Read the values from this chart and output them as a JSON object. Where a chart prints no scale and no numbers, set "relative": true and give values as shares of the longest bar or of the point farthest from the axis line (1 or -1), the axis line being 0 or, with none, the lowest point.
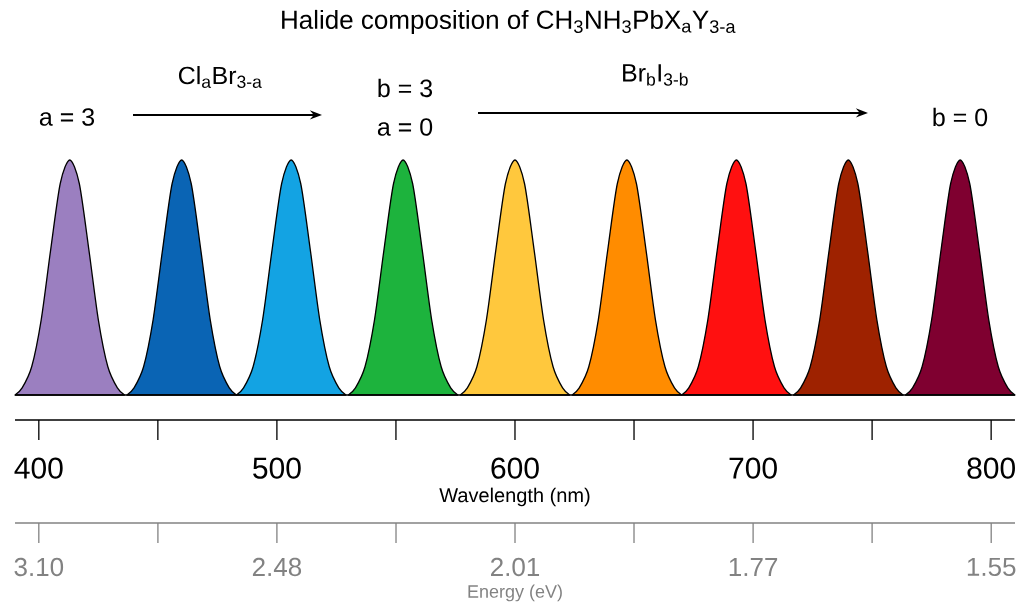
{
  "chart_data": {
    "type": "area",
    "relative": true,
    "title": "Halide composition of CH$_{3}$NH$_{3}$PbX$_{a}$Y$_{3-a}$",
    "annotations": [
      "a = 3",
      "Cl$_{a}$Br$_{3-a}$",
      "b = 3",
      "a = 0",
      "Br$_{b}$I$_{3-b}$",
      "b = 0",
      "3.10",
      "2.48",
      "2.01",
      "1.77",
      "1.55",
      "Energy (eV)"
    ],
    "xlabel": "Wavelength (nm)",
    "xlim": [
      390,
      810
    ],
    "xticks": [
      400,
      500,
      600,
      700,
      800
    ],
    "series": [
      {
        "color": "#9b7fc0",
        "x": [
          390,
          393,
          397,
          401,
          405,
          409,
          413,
          417,
          421,
          425,
          429,
          433,
          436
        ],
        "values": [
          0,
          0.03,
          0.12,
          0.32,
          0.62,
          0.9,
          1,
          0.9,
          0.62,
          0.32,
          0.12,
          0.03,
          0
        ]
      },
      {
        "color": "#0a64b4",
        "x": [
          437,
          440,
          444,
          448,
          452,
          456,
          460,
          464,
          468,
          472,
          476,
          480,
          483
        ],
        "values": [
          0,
          0.03,
          0.12,
          0.32,
          0.62,
          0.9,
          1,
          0.9,
          0.62,
          0.32,
          0.12,
          0.03,
          0
        ]
      },
      {
        "color": "#13a3e3",
        "x": [
          483,
          486,
          490,
          494,
          498,
          502,
          506,
          510,
          514,
          518,
          522,
          526,
          529
        ],
        "values": [
          0,
          0.03,
          0.12,
          0.32,
          0.62,
          0.9,
          1,
          0.9,
          0.62,
          0.32,
          0.12,
          0.03,
          0
        ]
      },
      {
        "color": "#1db33d",
        "x": [
          530,
          533,
          537,
          541,
          545,
          549,
          553,
          557,
          561,
          565,
          569,
          573,
          576
        ],
        "values": [
          0,
          0.03,
          0.12,
          0.32,
          0.62,
          0.9,
          1,
          0.9,
          0.62,
          0.32,
          0.12,
          0.03,
          0
        ]
      },
      {
        "color": "#ffc83d",
        "x": [
          577,
          580,
          584,
          588,
          592,
          596,
          600,
          604,
          608,
          612,
          616,
          620,
          623
        ],
        "values": [
          0,
          0.03,
          0.12,
          0.32,
          0.62,
          0.9,
          1,
          0.9,
          0.62,
          0.32,
          0.12,
          0.03,
          0
        ]
      },
      {
        "color": "#ff8c00",
        "x": [
          624,
          627,
          631,
          635,
          639,
          643,
          647,
          651,
          655,
          659,
          663,
          667,
          670
        ],
        "values": [
          0,
          0.03,
          0.12,
          0.32,
          0.62,
          0.9,
          1,
          0.9,
          0.62,
          0.32,
          0.12,
          0.03,
          0
        ]
      },
      {
        "color": "#ff1010",
        "x": [
          670,
          673,
          677,
          681,
          685,
          689,
          693,
          697,
          701,
          705,
          709,
          713,
          716
        ],
        "values": [
          0,
          0.03,
          0.12,
          0.32,
          0.62,
          0.9,
          1,
          0.9,
          0.62,
          0.32,
          0.12,
          0.03,
          0
        ]
      },
      {
        "color": "#9e2200",
        "x": [
          717,
          720,
          724,
          728,
          732,
          736,
          740,
          744,
          748,
          752,
          756,
          760,
          763
        ],
        "values": [
          0,
          0.03,
          0.12,
          0.32,
          0.62,
          0.9,
          1,
          0.9,
          0.62,
          0.32,
          0.12,
          0.03,
          0
        ]
      },
      {
        "color": "#7f0030",
        "x": [
          764,
          767,
          771,
          775,
          779,
          783,
          787,
          791,
          795,
          799,
          803,
          807,
          810
        ],
        "values": [
          0,
          0.03,
          0.12,
          0.32,
          0.62,
          0.9,
          1,
          0.9,
          0.62,
          0.32,
          0.12,
          0.03,
          0
        ]
      }
    ]
  }
}
